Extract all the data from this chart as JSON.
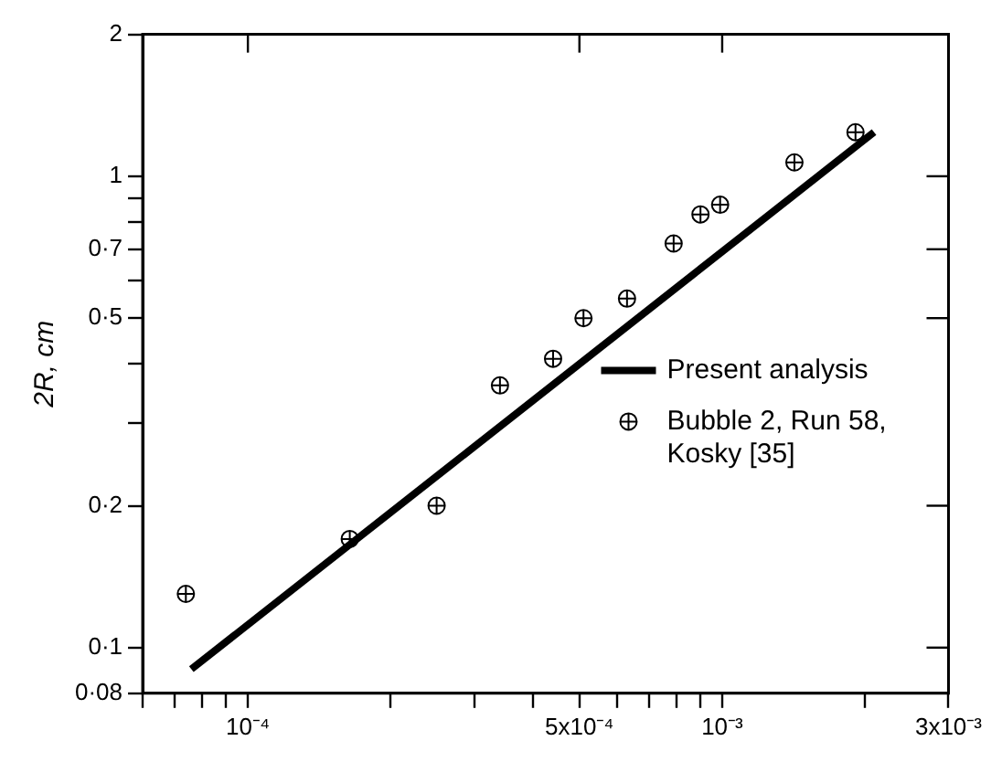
{
  "chart_data": {
    "type": "scatter",
    "ylabel": "2R, cm",
    "log": "xy",
    "grid": false,
    "legend": "right",
    "xlim": [
      6e-05,
      0.003
    ],
    "ylim": [
      0.08,
      2
    ],
    "xticks": [
      {
        "value": 6e-05,
        "label": null
      },
      {
        "value": 7e-05,
        "label": null
      },
      {
        "value": 8e-05,
        "label": null
      },
      {
        "value": 9e-05,
        "label": null
      },
      {
        "value": 0.0001,
        "label": "10⁻⁴"
      },
      {
        "value": 0.0002,
        "label": null
      },
      {
        "value": 0.0003,
        "label": null
      },
      {
        "value": 0.0004,
        "label": null
      },
      {
        "value": 0.0005,
        "label": "5x10⁻⁴"
      },
      {
        "value": 0.0006,
        "label": null
      },
      {
        "value": 0.0007,
        "label": null
      },
      {
        "value": 0.0008,
        "label": null
      },
      {
        "value": 0.0009,
        "label": null
      },
      {
        "value": 0.001,
        "label": "10⁻³"
      },
      {
        "value": 0.002,
        "label": null
      },
      {
        "value": 0.003,
        "label": "3x10⁻³"
      }
    ],
    "yticks": [
      {
        "value": 0.08,
        "label": "0·08"
      },
      {
        "value": 0.1,
        "label": "0·1"
      },
      {
        "value": 0.2,
        "label": "0·2"
      },
      {
        "value": 0.3,
        "label": null
      },
      {
        "value": 0.4,
        "label": null
      },
      {
        "value": 0.5,
        "label": "0·5"
      },
      {
        "value": 0.6,
        "label": null
      },
      {
        "value": 0.7,
        "label": "0·7"
      },
      {
        "value": 0.8,
        "label": null
      },
      {
        "value": 0.9,
        "label": null
      },
      {
        "value": 1,
        "label": "1"
      },
      {
        "value": 2,
        "label": "2"
      }
    ],
    "series": [
      {
        "name": "Present analysis",
        "type": "line",
        "color": "#000000",
        "line_style": "solid",
        "x": [
          7.6e-05,
          0.00209
        ],
        "values": [
          0.09,
          1.24
        ]
      },
      {
        "name": "Bubble 2, Run 58, Kosky [35]",
        "marker": "circle",
        "color": "#000000",
        "x": [
          7.4e-05,
          0.000164,
          0.00025,
          0.00034,
          0.00044,
          0.00051,
          0.00063,
          0.00079,
          0.0009,
          0.00099,
          0.00142,
          0.00191
        ],
        "values": [
          0.13,
          0.17,
          0.2,
          0.36,
          0.41,
          0.5,
          0.55,
          0.72,
          0.83,
          0.87,
          1.07,
          1.24
        ]
      }
    ]
  }
}
